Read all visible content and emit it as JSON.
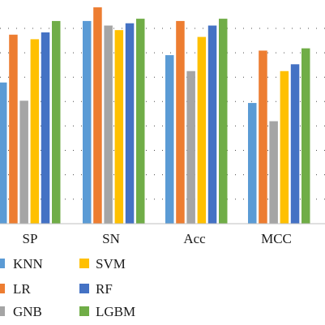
{
  "chart_data": {
    "type": "bar",
    "title": "",
    "xlabel": "",
    "ylabel": "",
    "ylim": [
      0,
      1
    ],
    "grid": true,
    "legend_position": "bottom",
    "categories": [
      "SP",
      "SN",
      "Acc",
      "MCC"
    ],
    "series": [
      {
        "name": "KNN",
        "color": "#5b9bd5",
        "values": [
          0.62,
          0.89,
          0.74,
          0.53
        ]
      },
      {
        "name": "LR",
        "color": "#ed7d31",
        "values": [
          0.83,
          0.95,
          0.89,
          0.76
        ]
      },
      {
        "name": "GNB",
        "color": "#a5a5a5",
        "values": [
          0.54,
          0.87,
          0.67,
          0.45
        ]
      },
      {
        "name": "SVM",
        "color": "#ffc000",
        "values": [
          0.81,
          0.85,
          0.82,
          0.67
        ]
      },
      {
        "name": "RF",
        "color": "#4472c4",
        "values": [
          0.84,
          0.88,
          0.87,
          0.7
        ]
      },
      {
        "name": "LGBM",
        "color": "#70ad47",
        "values": [
          0.89,
          0.9,
          0.9,
          0.77
        ]
      }
    ]
  }
}
